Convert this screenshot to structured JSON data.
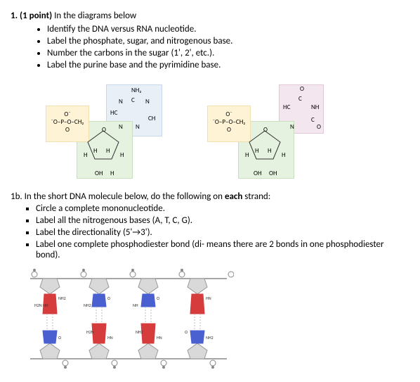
{
  "q1": {
    "number": "1.",
    "points": "(1 point)",
    "intro": "In the diagrams below",
    "bullets": [
      "Identify the DNA versus RNA nucleotide.",
      "Label the phosphate, sugar, and nitrogenous base.",
      "Number the carbons in the sugar (1', 2', etc.).",
      "Label the purine base and the pyrimidine base."
    ]
  },
  "diag_left": {
    "phosphate_top": "O⁻",
    "phosphate_mid": "⁻O–P–O–CH₂",
    "phosphate_bot": "O",
    "sugar_O": "O",
    "sugar_H": "H",
    "sugar_OH": "OH",
    "sugar_H2": "H",
    "base_nh2": "NH₂",
    "base_n": "N",
    "base_c": "C",
    "base_ch": "CH",
    "base_hc": "HC",
    "colors": {
      "phos": "#fff3d6",
      "sugar": "#e6f2e0",
      "base": "#e8eff7"
    }
  },
  "diag_right": {
    "phosphate_top": "O⁻",
    "phosphate_mid": "⁻O–P–O–CH₂",
    "phosphate_bot": "O",
    "sugar_O": "O",
    "sugar_H": "H",
    "sugar_OH": "OH",
    "base_o": "O",
    "base_nh": "NH",
    "base_n": "N",
    "base_c": "C",
    "base_hc": "HC",
    "colors": {
      "phos": "#fff3d6",
      "sugar": "#e6f2e0",
      "base": "#f3e6ee"
    }
  },
  "q1b": {
    "number": "1b.",
    "intro": "In the short DNA molecule below, do the following on",
    "emph": "each",
    "intro2": "strand:",
    "bullets": [
      "Circle a complete mononucleotide.",
      "Label all the nitrogenous bases (A, T, C, G).",
      "Label the directionality (5'→3').",
      "Label one complete phosphodiester bond (di- means there are 2 bonds in one phosphodiester bond)."
    ]
  },
  "dna": {
    "labels": {
      "nh2": "NH2",
      "h2n": "H2N",
      "nh": "NH",
      "hn": "HN",
      "o": "O"
    },
    "colors": {
      "sugar": "#d9d9d9",
      "purine": "#d63c3c",
      "pyrimidine": "#4a5fd0",
      "bond": "#888888",
      "text": "#333333"
    }
  }
}
